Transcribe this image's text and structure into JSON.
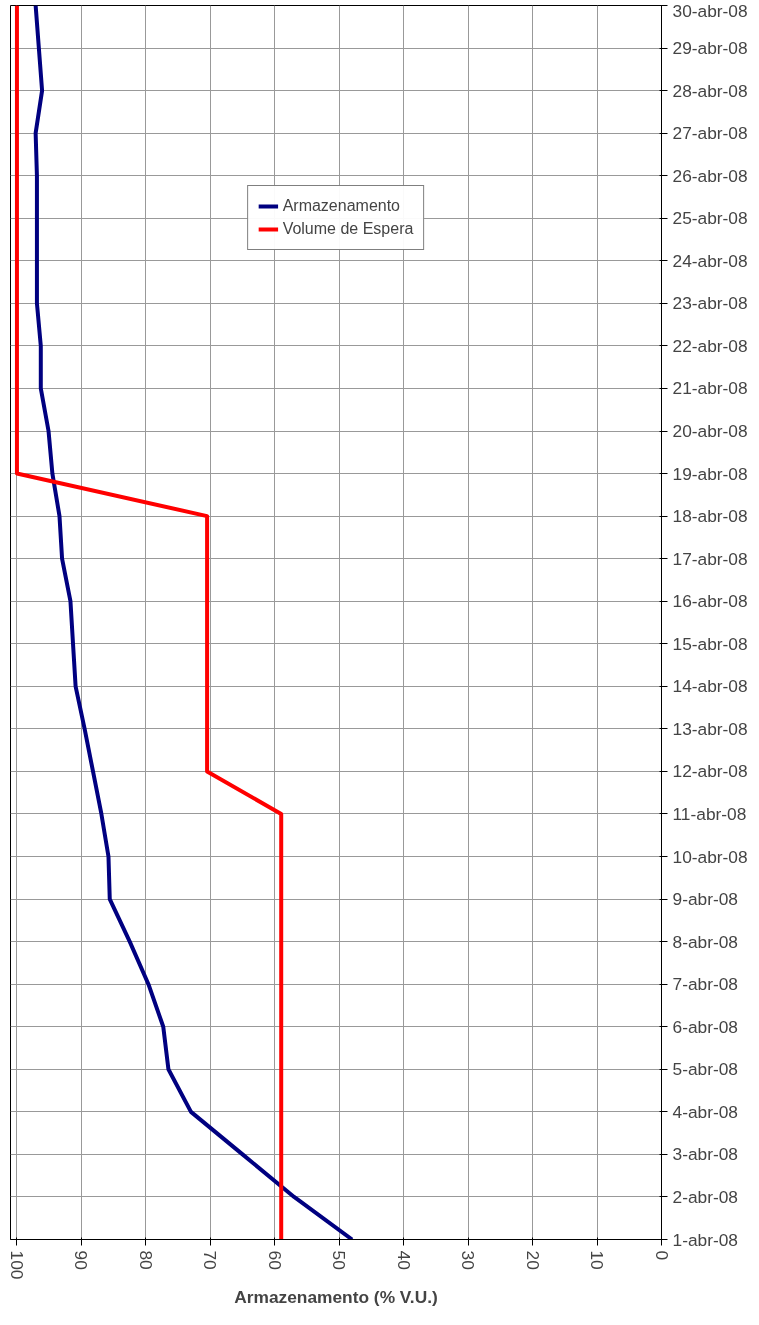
{
  "chart_data": {
    "type": "line",
    "orientation": "horizontal",
    "xlabel": "Armazenamento (% V.U.)",
    "categories": [
      "30-abr-08",
      "29-abr-08",
      "28-abr-08",
      "27-abr-08",
      "26-abr-08",
      "25-abr-08",
      "24-abr-08",
      "23-abr-08",
      "22-abr-08",
      "21-abr-08",
      "20-abr-08",
      "19-abr-08",
      "18-abr-08",
      "17-abr-08",
      "16-abr-08",
      "15-abr-08",
      "14-abr-08",
      "13-abr-08",
      "12-abr-08",
      "11-abr-08",
      "10-abr-08",
      "9-abr-08",
      "8-abr-08",
      "7-abr-08",
      "6-abr-08",
      "5-abr-08",
      "4-abr-08",
      "3-abr-08",
      "2-abr-08",
      "1-abr-08"
    ],
    "series": [
      {
        "name": "Armazenamento",
        "color": "#000080",
        "values": [
          97.1,
          96.6,
          96.1,
          97.1,
          96.9,
          96.9,
          96.9,
          96.9,
          96.3,
          96.3,
          95.1,
          94.5,
          93.4,
          93,
          91.7,
          91.3,
          90.9,
          89.5,
          88.2,
          86.9,
          85.8,
          85.6,
          82.5,
          79.6,
          77.3,
          76.5,
          73,
          65,
          57,
          48
        ]
      },
      {
        "name": "Volume de Espera",
        "color": "#ff0000",
        "values": [
          100,
          100,
          100,
          100,
          100,
          100,
          100,
          100,
          100,
          100,
          100,
          100,
          70.5,
          70.5,
          70.5,
          70.5,
          70.5,
          70.5,
          70.5,
          59,
          59,
          59,
          59,
          59,
          59,
          59,
          59,
          59,
          59,
          59
        ]
      }
    ],
    "xlim": [
      101,
      0
    ],
    "xticks": [
      0,
      10,
      20,
      30,
      40,
      50,
      60,
      70,
      80,
      90,
      100
    ],
    "grid": true,
    "legend": "top"
  }
}
